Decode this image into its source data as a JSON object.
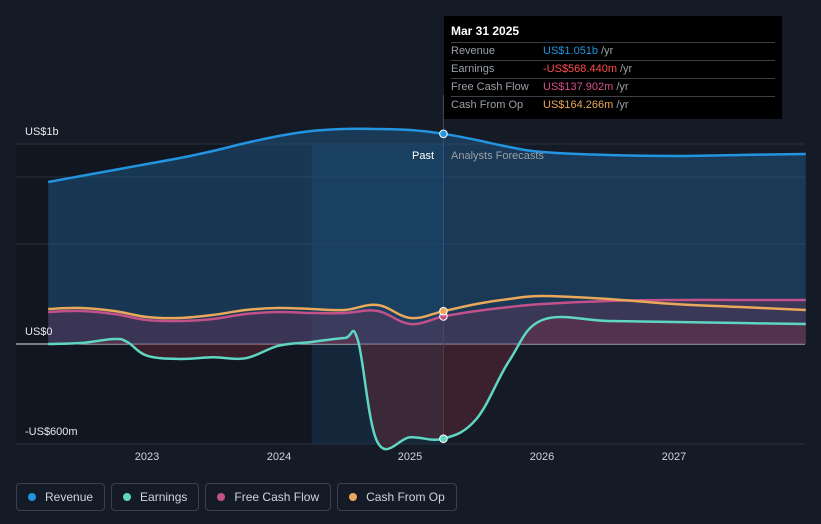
{
  "tooltip": {
    "date": "Mar 31 2025",
    "rows": [
      {
        "label": "Revenue",
        "value": "US$1.051b",
        "unit": "/yr",
        "color": "#2394df"
      },
      {
        "label": "Earnings",
        "value": "-US$568.440m",
        "unit": "/yr",
        "color": "#ff4d4d"
      },
      {
        "label": "Free Cash Flow",
        "value": "US$137.902m",
        "unit": "/yr",
        "color": "#d6518a"
      },
      {
        "label": "Cash From Op",
        "value": "US$164.266m",
        "unit": "/yr",
        "color": "#e9a85a"
      }
    ]
  },
  "labels": {
    "past": "Past",
    "forecast": "Analysts Forecasts"
  },
  "legend": [
    {
      "label": "Revenue",
      "color": "#2394df"
    },
    {
      "label": "Earnings",
      "color": "#5ed6c2"
    },
    {
      "label": "Free Cash Flow",
      "color": "#c2518a"
    },
    {
      "label": "Cash From Op",
      "color": "#e9a85a"
    }
  ],
  "chart_data": {
    "type": "line",
    "y_unit": "US$ m",
    "ylim": [
      -600,
      1000
    ],
    "y_ticks": [
      {
        "value": 1000,
        "label": "US$1b"
      },
      {
        "value": 0,
        "label": "US$0"
      },
      {
        "value": -600,
        "label": "-US$600m"
      }
    ],
    "x_ticks": [
      {
        "value": 2023,
        "label": "2023"
      },
      {
        "value": 2024,
        "label": "2024"
      },
      {
        "value": 2025,
        "label": "2025"
      },
      {
        "value": 2026,
        "label": "2026"
      },
      {
        "value": 2027,
        "label": "2027"
      }
    ],
    "xlim": [
      2022.2,
      2028.0
    ],
    "today": 2025.25,
    "highlight_start": 2024.25,
    "series": [
      {
        "name": "Revenue",
        "color": "#2394df",
        "fill": true,
        "points": [
          [
            2022.25,
            810
          ],
          [
            2022.5,
            840
          ],
          [
            2022.75,
            870
          ],
          [
            2023.0,
            900
          ],
          [
            2023.25,
            930
          ],
          [
            2023.5,
            965
          ],
          [
            2023.75,
            1005
          ],
          [
            2024.0,
            1040
          ],
          [
            2024.25,
            1065
          ],
          [
            2024.5,
            1075
          ],
          [
            2024.75,
            1075
          ],
          [
            2025.0,
            1070
          ],
          [
            2025.25,
            1051
          ],
          [
            2025.5,
            1020
          ],
          [
            2025.75,
            985
          ],
          [
            2026.0,
            960
          ],
          [
            2026.5,
            945
          ],
          [
            2027.0,
            940
          ],
          [
            2027.5,
            945
          ],
          [
            2028.0,
            950
          ]
        ]
      },
      {
        "name": "Earnings",
        "color": "#5ed6c2",
        "fill": true,
        "points": [
          [
            2022.25,
            0
          ],
          [
            2022.5,
            5
          ],
          [
            2022.75,
            25
          ],
          [
            2022.85,
            10
          ],
          [
            2023.0,
            -70
          ],
          [
            2023.25,
            -90
          ],
          [
            2023.5,
            -80
          ],
          [
            2023.75,
            -85
          ],
          [
            2024.0,
            -10
          ],
          [
            2024.25,
            10
          ],
          [
            2024.5,
            30
          ],
          [
            2024.6,
            20
          ],
          [
            2024.75,
            -590
          ],
          [
            2025.0,
            -560
          ],
          [
            2025.25,
            -568
          ],
          [
            2025.5,
            -450
          ],
          [
            2025.75,
            -100
          ],
          [
            2026.0,
            120
          ],
          [
            2026.5,
            115
          ],
          [
            2027.0,
            110
          ],
          [
            2027.5,
            105
          ],
          [
            2028.0,
            100
          ]
        ]
      },
      {
        "name": "Free Cash Flow",
        "color": "#c2518a",
        "fill": true,
        "points": [
          [
            2022.25,
            160
          ],
          [
            2022.5,
            165
          ],
          [
            2022.75,
            150
          ],
          [
            2023.0,
            120
          ],
          [
            2023.25,
            115
          ],
          [
            2023.5,
            125
          ],
          [
            2023.75,
            150
          ],
          [
            2024.0,
            160
          ],
          [
            2024.25,
            155
          ],
          [
            2024.5,
            155
          ],
          [
            2024.75,
            165
          ],
          [
            2025.0,
            100
          ],
          [
            2025.25,
            138
          ],
          [
            2025.5,
            165
          ],
          [
            2025.75,
            185
          ],
          [
            2026.0,
            200
          ],
          [
            2026.5,
            215
          ],
          [
            2027.0,
            220
          ],
          [
            2027.5,
            220
          ],
          [
            2028.0,
            220
          ]
        ]
      },
      {
        "name": "Cash From Op",
        "color": "#e9a85a",
        "fill": false,
        "points": [
          [
            2022.25,
            175
          ],
          [
            2022.5,
            180
          ],
          [
            2022.75,
            165
          ],
          [
            2023.0,
            135
          ],
          [
            2023.25,
            130
          ],
          [
            2023.5,
            145
          ],
          [
            2023.75,
            170
          ],
          [
            2024.0,
            180
          ],
          [
            2024.25,
            175
          ],
          [
            2024.5,
            170
          ],
          [
            2024.75,
            195
          ],
          [
            2025.0,
            130
          ],
          [
            2025.25,
            164
          ],
          [
            2025.5,
            200
          ],
          [
            2025.75,
            225
          ],
          [
            2026.0,
            240
          ],
          [
            2026.5,
            225
          ],
          [
            2027.0,
            200
          ],
          [
            2027.5,
            185
          ],
          [
            2028.0,
            170
          ]
        ]
      }
    ]
  }
}
